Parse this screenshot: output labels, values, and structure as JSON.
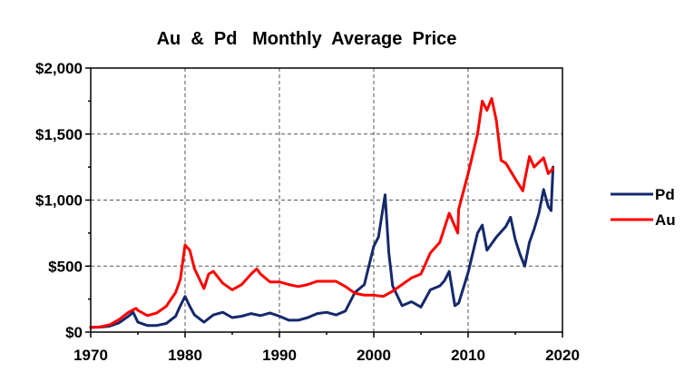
{
  "chart_data": {
    "type": "line",
    "title": "Au  &  Pd   Monthly  Average  Price",
    "xlabel": "",
    "ylabel": "",
    "xlim": [
      1970,
      2020
    ],
    "ylim": [
      0,
      2000
    ],
    "x_ticks": [
      1970,
      1980,
      1990,
      2000,
      2010,
      2020
    ],
    "x_tick_labels": [
      "1970",
      "1980",
      "1990",
      "2000",
      "2010",
      "2020"
    ],
    "y_ticks": [
      0,
      500,
      1000,
      1500,
      2000
    ],
    "y_tick_labels": [
      "$0",
      "$500",
      "$1,000",
      "$1,500",
      "$2,000"
    ],
    "grid": true,
    "legend_position": "right",
    "series": [
      {
        "name": "Pd",
        "color": "#15296b",
        "points": [
          [
            1970,
            35
          ],
          [
            1971,
            38
          ],
          [
            1972,
            45
          ],
          [
            1973,
            70
          ],
          [
            1974,
            120
          ],
          [
            1974.5,
            150
          ],
          [
            1975,
            75
          ],
          [
            1976,
            50
          ],
          [
            1977,
            50
          ],
          [
            1978,
            65
          ],
          [
            1979,
            120
          ],
          [
            1979.5,
            200
          ],
          [
            1980,
            270
          ],
          [
            1980.5,
            195
          ],
          [
            1981,
            130
          ],
          [
            1982,
            75
          ],
          [
            1983,
            130
          ],
          [
            1984,
            150
          ],
          [
            1985,
            110
          ],
          [
            1986,
            120
          ],
          [
            1987,
            140
          ],
          [
            1988,
            125
          ],
          [
            1989,
            145
          ],
          [
            1990,
            120
          ],
          [
            1991,
            90
          ],
          [
            1992,
            90
          ],
          [
            1993,
            110
          ],
          [
            1994,
            140
          ],
          [
            1995,
            150
          ],
          [
            1996,
            130
          ],
          [
            1997,
            160
          ],
          [
            1997.5,
            230
          ],
          [
            1998,
            300
          ],
          [
            1999,
            360
          ],
          [
            2000,
            650
          ],
          [
            2000.5,
            720
          ],
          [
            2001,
            950
          ],
          [
            2001.2,
            1040
          ],
          [
            2001.6,
            600
          ],
          [
            2002,
            350
          ],
          [
            2003,
            200
          ],
          [
            2004,
            230
          ],
          [
            2005,
            190
          ],
          [
            2006,
            320
          ],
          [
            2007,
            350
          ],
          [
            2007.5,
            390
          ],
          [
            2008,
            460
          ],
          [
            2008.6,
            200
          ],
          [
            2009,
            220
          ],
          [
            2010,
            450
          ],
          [
            2011,
            750
          ],
          [
            2011.5,
            810
          ],
          [
            2012,
            620
          ],
          [
            2013,
            720
          ],
          [
            2014,
            800
          ],
          [
            2014.5,
            870
          ],
          [
            2015,
            700
          ],
          [
            2015.5,
            590
          ],
          [
            2016,
            500
          ],
          [
            2016.5,
            680
          ],
          [
            2017,
            780
          ],
          [
            2017.5,
            900
          ],
          [
            2018,
            1080
          ],
          [
            2018.5,
            950
          ],
          [
            2018.8,
            920
          ],
          [
            2019,
            1250
          ]
        ]
      },
      {
        "name": "Au",
        "color": "#ff0000",
        "points": [
          [
            1970,
            35
          ],
          [
            1971,
            40
          ],
          [
            1972,
            55
          ],
          [
            1973,
            95
          ],
          [
            1974,
            150
          ],
          [
            1974.8,
            180
          ],
          [
            1975,
            165
          ],
          [
            1976,
            125
          ],
          [
            1977,
            145
          ],
          [
            1978,
            195
          ],
          [
            1979,
            300
          ],
          [
            1979.5,
            400
          ],
          [
            1980,
            660
          ],
          [
            1980.5,
            620
          ],
          [
            1981,
            480
          ],
          [
            1982,
            330
          ],
          [
            1982.5,
            440
          ],
          [
            1983,
            460
          ],
          [
            1984,
            370
          ],
          [
            1985,
            320
          ],
          [
            1986,
            360
          ],
          [
            1987,
            440
          ],
          [
            1987.6,
            480
          ],
          [
            1988,
            440
          ],
          [
            1989,
            380
          ],
          [
            1990,
            380
          ],
          [
            1991,
            360
          ],
          [
            1992,
            345
          ],
          [
            1993,
            360
          ],
          [
            1994,
            385
          ],
          [
            1995,
            385
          ],
          [
            1996,
            385
          ],
          [
            1997,
            345
          ],
          [
            1998,
            295
          ],
          [
            1999,
            280
          ],
          [
            2000,
            280
          ],
          [
            2001,
            270
          ],
          [
            2002,
            310
          ],
          [
            2003,
            360
          ],
          [
            2004,
            410
          ],
          [
            2005,
            440
          ],
          [
            2006,
            600
          ],
          [
            2007,
            680
          ],
          [
            2008,
            900
          ],
          [
            2008.9,
            750
          ],
          [
            2009,
            930
          ],
          [
            2010,
            1200
          ],
          [
            2011,
            1500
          ],
          [
            2011.5,
            1750
          ],
          [
            2012,
            1680
          ],
          [
            2012.5,
            1770
          ],
          [
            2013,
            1600
          ],
          [
            2013.5,
            1300
          ],
          [
            2014,
            1280
          ],
          [
            2015,
            1160
          ],
          [
            2015.8,
            1070
          ],
          [
            2016,
            1150
          ],
          [
            2016.5,
            1330
          ],
          [
            2017,
            1250
          ],
          [
            2018,
            1320
          ],
          [
            2018.5,
            1200
          ],
          [
            2019,
            1240
          ]
        ]
      }
    ]
  }
}
